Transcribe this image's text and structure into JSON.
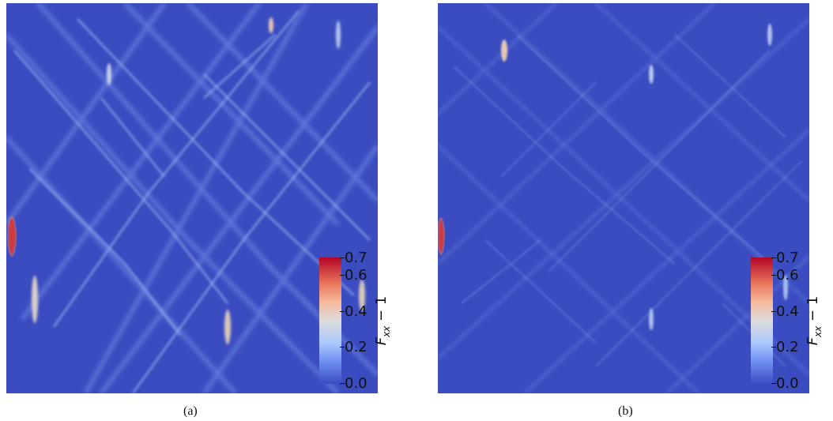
{
  "panels": [
    {
      "caption": "(a)",
      "colorbar": {
        "label_main": "F",
        "label_sub": "xx",
        "label_tail": " − 1",
        "ticks": [
          "0.7",
          "0.6",
          "0.4",
          "0.2",
          "0.0"
        ],
        "tick_values": [
          0.7,
          0.6,
          0.4,
          0.2,
          0.0
        ],
        "range": [
          0.0,
          0.7
        ],
        "colormap": "coolwarm"
      }
    },
    {
      "caption": "(b)",
      "colorbar": {
        "label_main": "F",
        "label_sub": "xx",
        "label_tail": " − 1",
        "ticks": [
          "0.7",
          "0.6",
          "0.4",
          "0.2",
          "0.0"
        ],
        "tick_values": [
          0.7,
          0.6,
          0.4,
          0.2,
          0.0
        ],
        "range": [
          0.0,
          0.7
        ],
        "colormap": "coolwarm"
      }
    }
  ],
  "colors": {
    "background_field": "#3b4cc0",
    "low": "#3b4cc0",
    "mid": "#dddcdc",
    "high": "#b40426"
  }
}
